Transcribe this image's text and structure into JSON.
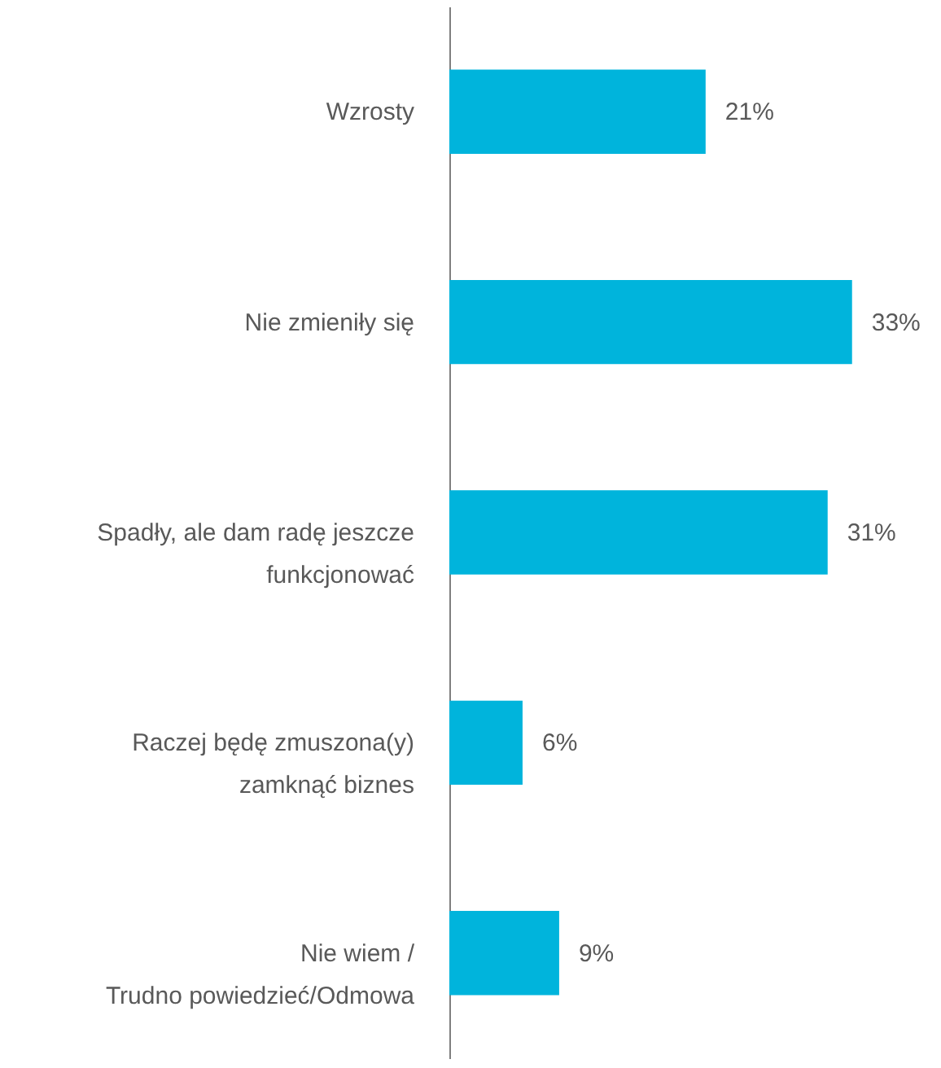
{
  "chart_data": {
    "type": "bar",
    "orientation": "horizontal",
    "categories": [
      "Wzrosty",
      "Nie zmieniły się",
      "Spadły, ale dam radę jeszcze funkcjonować",
      "Raczej będę zmuszona(y) zamknąć biznes",
      "Nie wiem / Trudno powiedzieć/Odmowa"
    ],
    "values": [
      21,
      33,
      31,
      6,
      9
    ],
    "value_labels": [
      "21%",
      "33%",
      "31%",
      "6%",
      "9%"
    ],
    "color": "#00b4dc"
  }
}
